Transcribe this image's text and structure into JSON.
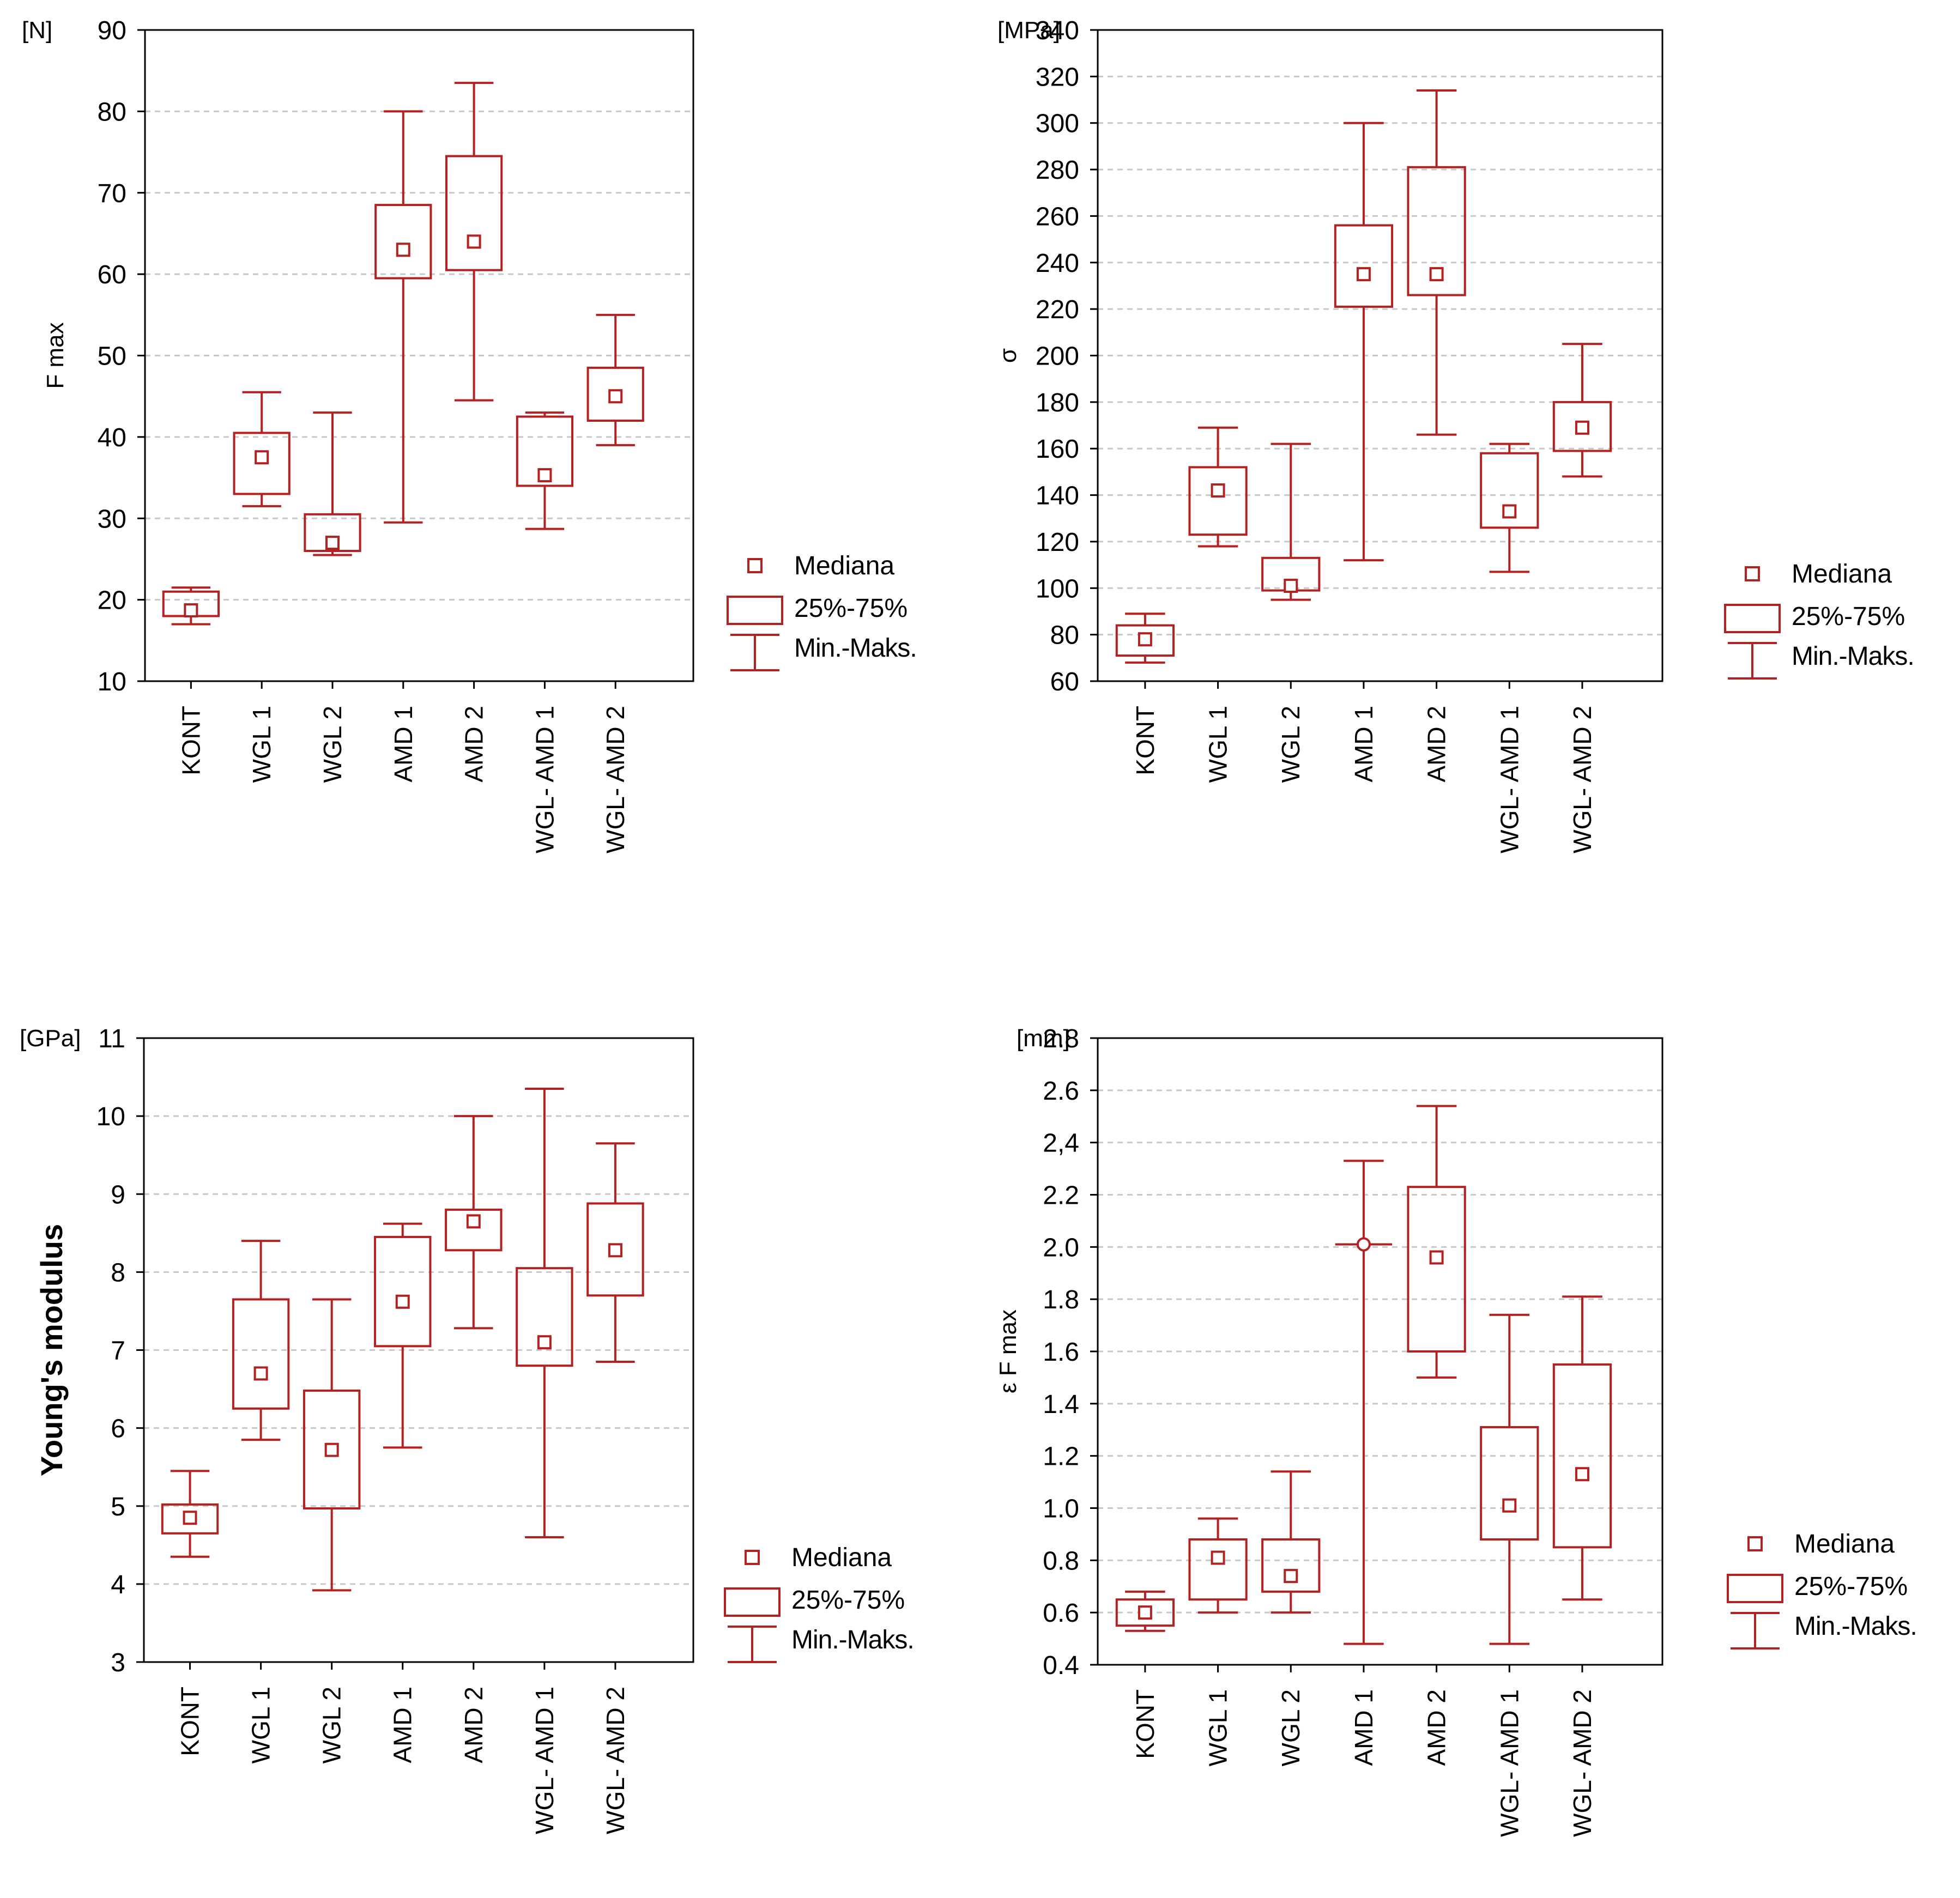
{
  "legend": {
    "median_label": "Mediana",
    "box_label": "25%-75%",
    "whisker_label": "Min.-Maks."
  },
  "colors": {
    "plot": "#b22222",
    "axis": "#000000",
    "grid": "#c8c8c8",
    "text": "#000000"
  },
  "chart_data": [
    {
      "type": "boxplot",
      "title": "",
      "unit": "[N]",
      "ylabel": "F max",
      "ylabel_bold": false,
      "ylim": [
        10,
        90
      ],
      "yticks": [
        10,
        20,
        30,
        40,
        50,
        60,
        70,
        80,
        90
      ],
      "ytick_labels": [
        "10",
        "20",
        "30",
        "40",
        "50",
        "60",
        "70",
        "80",
        "90"
      ],
      "categories": [
        "KONT",
        "WGL 1",
        "WGL 2",
        "AMD 1",
        "AMD 2",
        "WGL- AMD 1",
        "WGL- AMD 2"
      ],
      "min": [
        17,
        31.5,
        25.5,
        29.5,
        44.5,
        28.7,
        39
      ],
      "q1": [
        18,
        33,
        26,
        59.5,
        60.5,
        34,
        42
      ],
      "median": [
        18.7,
        37.5,
        27,
        63,
        64,
        35.3,
        45
      ],
      "q3": [
        21,
        40.5,
        30.5,
        68.5,
        74.5,
        42.5,
        48.5
      ],
      "max": [
        21.5,
        45.5,
        43,
        80,
        83.5,
        43,
        55
      ],
      "median_marker": [
        "square",
        "square",
        "square",
        "square",
        "square",
        "square",
        "square"
      ]
    },
    {
      "type": "boxplot",
      "title": "",
      "unit": "[MPa]",
      "ylabel": "σ",
      "ylabel_bold": false,
      "ylim": [
        60,
        340
      ],
      "yticks": [
        60,
        80,
        100,
        120,
        140,
        160,
        180,
        200,
        220,
        240,
        260,
        280,
        300,
        320,
        340
      ],
      "ytick_labels": [
        "60",
        "80",
        "100",
        "120",
        "140",
        "160",
        "180",
        "200",
        "220",
        "240",
        "260",
        "280",
        "300",
        "320",
        "340"
      ],
      "categories": [
        "KONT",
        "WGL 1",
        "WGL 2",
        "AMD 1",
        "AMD 2",
        "WGL- AMD 1",
        "WGL- AMD 2"
      ],
      "min": [
        68,
        118,
        95,
        112,
        166,
        107,
        148
      ],
      "q1": [
        71,
        123,
        99,
        221,
        226,
        126,
        159
      ],
      "median": [
        78,
        142,
        101,
        235,
        235,
        133,
        169
      ],
      "q3": [
        84,
        152,
        113,
        256,
        281,
        158,
        180
      ],
      "max": [
        89,
        169,
        162,
        300,
        314,
        162,
        205
      ],
      "median_marker": [
        "square",
        "square",
        "square",
        "square",
        "square",
        "square",
        "square"
      ]
    },
    {
      "type": "boxplot",
      "title": "",
      "unit": "[GPa]",
      "ylabel": "Young's modulus",
      "ylabel_bold": true,
      "ylim": [
        3,
        11
      ],
      "yticks": [
        3,
        4,
        5,
        6,
        7,
        8,
        9,
        10,
        11
      ],
      "ytick_labels": [
        "3",
        "4",
        "5",
        "6",
        "7",
        "8",
        "9",
        "10",
        "11"
      ],
      "categories": [
        "KONT",
        "WGL 1",
        "WGL 2",
        "AMD 1",
        "AMD 2",
        "WGL- AMD 1",
        "WGL- AMD 2"
      ],
      "min": [
        4.35,
        5.85,
        3.92,
        5.75,
        7.28,
        4.6,
        6.85
      ],
      "q1": [
        4.65,
        6.25,
        4.97,
        7.05,
        8.28,
        6.8,
        7.7
      ],
      "median": [
        4.85,
        6.7,
        5.72,
        7.62,
        8.65,
        7.1,
        8.28
      ],
      "q3": [
        5.02,
        7.65,
        6.48,
        8.45,
        8.8,
        8.05,
        8.88
      ],
      "max": [
        5.45,
        8.4,
        7.65,
        8.62,
        10.0,
        10.35,
        9.65
      ],
      "median_marker": [
        "square",
        "square",
        "square",
        "square",
        "square",
        "square",
        "square"
      ]
    },
    {
      "type": "boxplot",
      "title": "",
      "unit": "[mm]",
      "ylabel": "ε F max",
      "ylabel_bold": false,
      "ylim": [
        0.4,
        2.8
      ],
      "yticks": [
        0.4,
        0.6,
        0.8,
        1.0,
        1.2,
        1.4,
        1.6,
        1.8,
        2.0,
        2.2,
        2.4,
        2.6,
        2.8
      ],
      "ytick_labels": [
        "0.4",
        "0.6",
        "0.8",
        "1.0",
        "1.2",
        "1.4",
        "1.6",
        "1.8",
        "2.0",
        "2.2",
        "2,4",
        "2.6",
        "2.8"
      ],
      "categories": [
        "KONT",
        "WGL 1",
        "WGL 2",
        "AMD 1",
        "AMD 2",
        "WGL- AMD 1",
        "WGL- AMD 2"
      ],
      "min": [
        0.53,
        0.6,
        0.6,
        0.48,
        1.5,
        0.48,
        0.65
      ],
      "q1": [
        0.55,
        0.65,
        0.68,
        2.01,
        1.6,
        0.88,
        0.85
      ],
      "median": [
        0.6,
        0.81,
        0.74,
        2.01,
        1.96,
        1.01,
        1.13
      ],
      "q3": [
        0.65,
        0.88,
        0.88,
        2.01,
        2.23,
        1.31,
        1.55
      ],
      "max": [
        0.68,
        0.96,
        1.14,
        2.33,
        2.54,
        1.74,
        1.81
      ],
      "median_marker": [
        "square",
        "square",
        "square",
        "circle",
        "square",
        "square",
        "square"
      ]
    }
  ]
}
